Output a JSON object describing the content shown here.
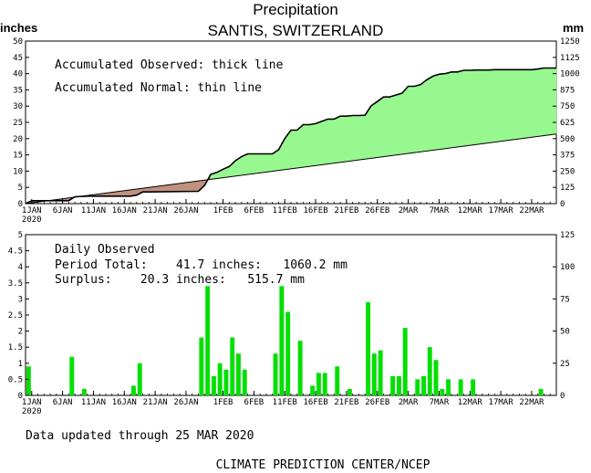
{
  "header": {
    "title": "Precipitation",
    "subtitle": "SANTIS,  SWITZERLAND"
  },
  "footer": {
    "updated": "Data updated through 25 MAR 2020",
    "credit": "CLIMATE PREDICTION CENTER/NCEP"
  },
  "colors": {
    "surplus_fill": "#98f890",
    "deficit_fill": "#c09080",
    "daily_bar": "#00e000",
    "line": "#000000"
  },
  "chart_data": [
    {
      "type": "area",
      "panel": "accumulated",
      "left_unit": "inches",
      "right_unit": "mm",
      "ylim": [
        0,
        50
      ],
      "y2lim": [
        0,
        1250
      ],
      "yticks": [
        "0",
        "5",
        "10",
        "15",
        "20",
        "25",
        "30",
        "35",
        "40",
        "45",
        "50"
      ],
      "y2ticks": [
        "0",
        "125",
        "250",
        "375",
        "500",
        "625",
        "750",
        "875",
        "1000",
        "1125",
        "1250"
      ],
      "x_tick_labels": [
        "1JAN",
        "6JAN",
        "11JAN",
        "16JAN",
        "21JAN",
        "26JAN",
        "1FEB",
        "6FEB",
        "11FEB",
        "16FEB",
        "21FEB",
        "26FEB",
        "2MAR",
        "7MAR",
        "12MAR",
        "17MAR",
        "22MAR"
      ],
      "x_tick_days": [
        1,
        6,
        11,
        16,
        21,
        26,
        32,
        37,
        42,
        47,
        52,
        57,
        62,
        67,
        72,
        77,
        82
      ],
      "year_label": "2020",
      "x_range_days": [
        1,
        86
      ],
      "annotations": [
        "Accumulated Observed: thick line",
        "Accumulated Normal: thin line"
      ],
      "series": [
        {
          "name": "Accumulated Observed",
          "days": [
            0,
            1,
            7,
            8,
            10,
            17,
            18,
            19,
            20,
            28,
            29,
            30,
            31,
            32,
            33,
            34,
            35,
            36,
            37,
            38,
            39,
            40,
            41,
            42,
            43,
            44,
            45,
            46,
            47,
            48,
            49,
            50,
            51,
            52,
            53,
            54,
            55,
            56,
            57,
            58,
            59,
            60,
            61,
            62,
            63,
            64,
            65,
            66,
            67,
            68,
            69,
            70,
            71,
            72,
            73,
            74,
            75,
            76,
            77,
            78,
            79,
            80,
            81,
            82,
            83,
            84,
            85,
            86
          ],
          "values": [
            0,
            0.9,
            0.9,
            2.1,
            2.3,
            2.3,
            2.6,
            3.6,
            3.6,
            3.8,
            5.6,
            9.0,
            9.6,
            10.6,
            11.4,
            13.2,
            14.5,
            15.3,
            15.3,
            15.3,
            15.3,
            15.3,
            16.6,
            20.0,
            22.6,
            22.6,
            24.3,
            24.3,
            24.6,
            25.3,
            26.0,
            26.0,
            26.9,
            26.9,
            27.1,
            27.1,
            27.2,
            30.1,
            31.4,
            32.8,
            32.8,
            33.4,
            34.0,
            36.1,
            36.1,
            36.6,
            38.1,
            39.2,
            39.8,
            40.0,
            40.5,
            40.5,
            41.0,
            41.0,
            41.1,
            41.1,
            41.1,
            41.2,
            41.2,
            41.2,
            41.2,
            41.2,
            41.2,
            41.2,
            41.4,
            41.7,
            41.7,
            41.7
          ]
        },
        {
          "name": "Accumulated Normal",
          "days": [
            0,
            86
          ],
          "values": [
            0,
            21.4
          ]
        }
      ]
    },
    {
      "type": "bar",
      "panel": "daily",
      "ylim": [
        0,
        5
      ],
      "y2lim": [
        0,
        125
      ],
      "yticks": [
        "0",
        "0.5",
        "1",
        "1.5",
        "2",
        "2.5",
        "3",
        "3.5",
        "4",
        "4.5",
        "5"
      ],
      "y2ticks": [
        "0",
        "25",
        "50",
        "75",
        "100",
        "125"
      ],
      "annotations": {
        "heading": "Daily Observed",
        "period_total": "Period Total:    41.7 inches:   1060.2 mm",
        "surplus": "Surplus:    20.3 inches:   515.7 mm"
      },
      "days": [
        1,
        8,
        10,
        18,
        19,
        29,
        30,
        31,
        32,
        33,
        34,
        35,
        36,
        41,
        42,
        43,
        45,
        47,
        48,
        49,
        51,
        53,
        56,
        57,
        58,
        60,
        61,
        62,
        64,
        65,
        66,
        67,
        68,
        69,
        71,
        73,
        84
      ],
      "values": [
        0.9,
        1.2,
        0.2,
        0.3,
        1.0,
        1.8,
        3.4,
        0.6,
        1.0,
        0.8,
        1.8,
        1.3,
        0.8,
        1.3,
        3.4,
        2.6,
        1.7,
        0.3,
        0.7,
        0.7,
        0.9,
        0.2,
        2.9,
        1.3,
        1.4,
        0.6,
        0.6,
        2.1,
        0.5,
        0.6,
        1.5,
        1.1,
        0.2,
        0.5,
        0.5,
        0.5,
        0.2
      ]
    }
  ]
}
